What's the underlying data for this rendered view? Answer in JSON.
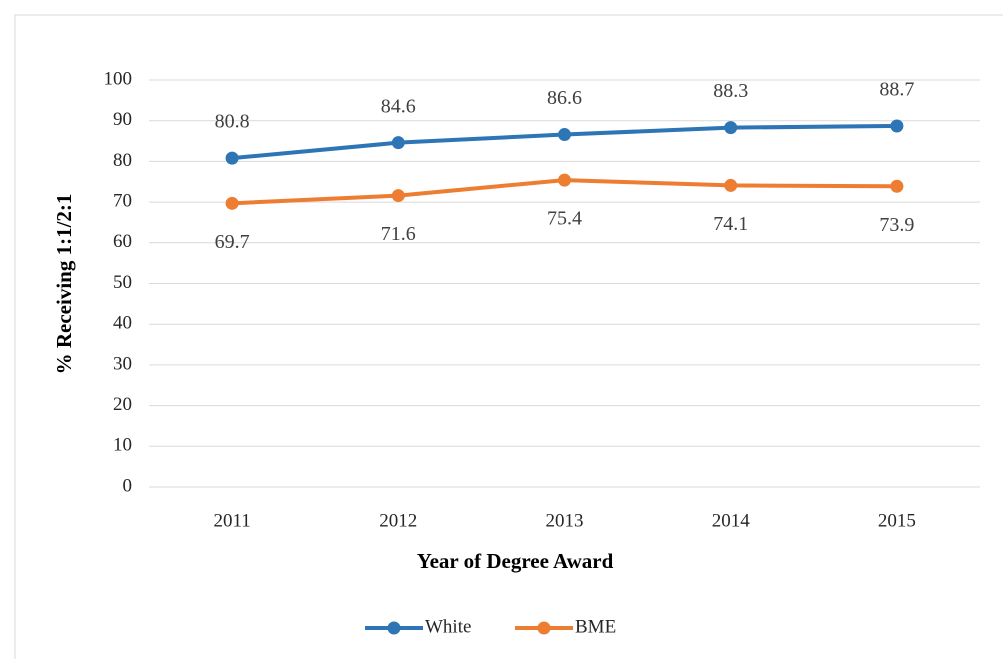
{
  "chart_data": {
    "type": "line",
    "categories": [
      "2011",
      "2012",
      "2013",
      "2014",
      "2015"
    ],
    "series": [
      {
        "name": "White",
        "color": "#2e75b6",
        "values": [
          80.8,
          84.6,
          86.6,
          88.3,
          88.7
        ]
      },
      {
        "name": "BME",
        "color": "#ed7d31",
        "values": [
          69.7,
          71.6,
          75.4,
          74.1,
          73.9
        ]
      }
    ],
    "x_label": "Year of Degree Award",
    "y_label": "%  Receiving 1:1/2:1",
    "ylim": [
      0,
      100
    ],
    "yticks": [
      0,
      10,
      20,
      30,
      40,
      50,
      60,
      70,
      80,
      90,
      100
    ],
    "grid": true,
    "legend": "bottom"
  }
}
